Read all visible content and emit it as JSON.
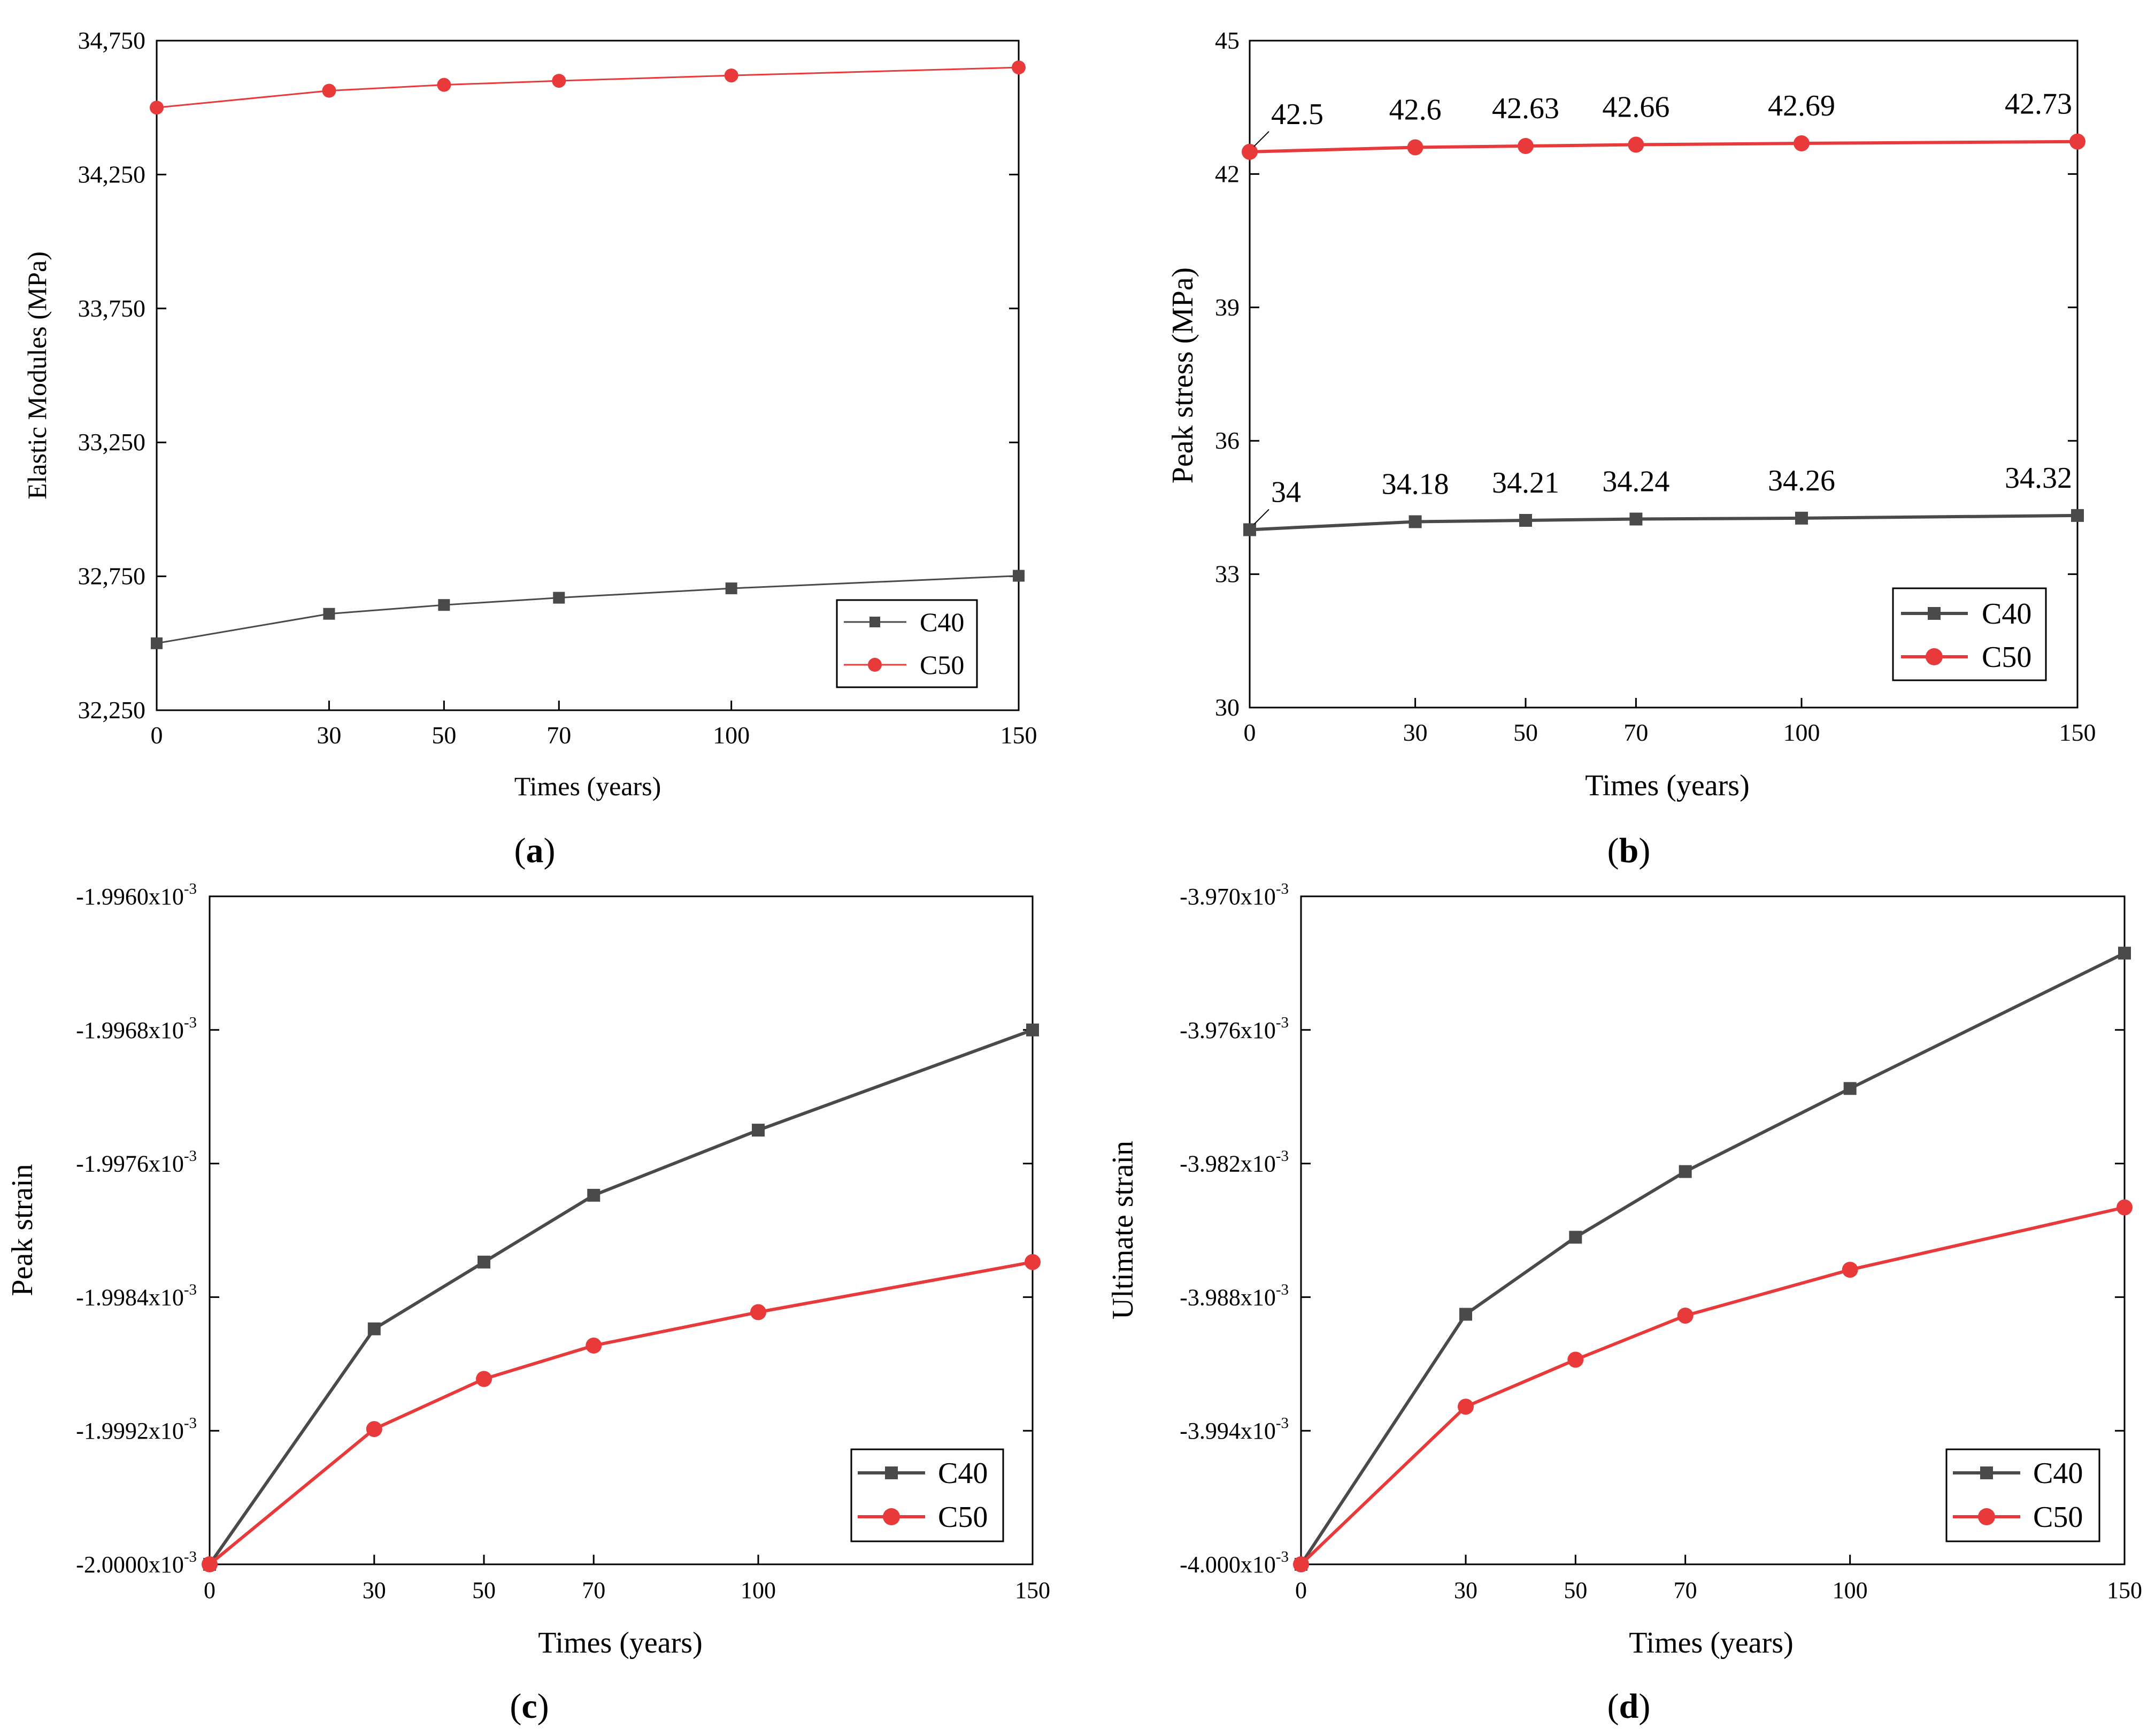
{
  "colors": {
    "c40": "#4a4a4a",
    "c50": "#e8393b",
    "axis": "#000000"
  },
  "chart_data": [
    {
      "id": "a",
      "type": "line",
      "panel_label": "a",
      "xlabel": "Times (years)",
      "ylabel": "Elastic Modules (MPa)",
      "x": [
        0,
        30,
        50,
        70,
        100,
        150
      ],
      "xticks": [
        "0",
        "30",
        "50",
        "70",
        "100",
        "150"
      ],
      "xlim": [
        0,
        150
      ],
      "ylim": [
        32250,
        34750
      ],
      "yticks": [
        32250,
        32750,
        33250,
        33750,
        34250,
        34750
      ],
      "yticklabels": [
        "32,250",
        "32,750",
        "33,250",
        "33,750",
        "34,250",
        "34,750"
      ],
      "series": [
        {
          "name": "C40",
          "marker": "square",
          "values": [
            32500,
            32610,
            32643,
            32670,
            32705,
            32752
          ]
        },
        {
          "name": "C50",
          "marker": "circle",
          "values": [
            34500,
            34563,
            34585,
            34600,
            34620,
            34650
          ]
        }
      ],
      "legend": "bottom-right",
      "data_labels": false
    },
    {
      "id": "b",
      "type": "line",
      "panel_label": "b",
      "xlabel": "Times (years)",
      "ylabel": "Peak stress (MPa)",
      "x": [
        0,
        30,
        50,
        70,
        100,
        150
      ],
      "xticks": [
        "0",
        "30",
        "50",
        "70",
        "100",
        "150"
      ],
      "xlim": [
        0,
        150
      ],
      "ylim": [
        30,
        45
      ],
      "yticks": [
        30,
        33,
        36,
        39,
        42,
        45
      ],
      "yticklabels": [
        "30",
        "33",
        "36",
        "39",
        "42",
        "45"
      ],
      "series": [
        {
          "name": "C40",
          "marker": "square",
          "values": [
            34,
            34.18,
            34.21,
            34.24,
            34.26,
            34.32
          ],
          "labels": [
            "34",
            "34.18",
            "34.21",
            "34.24",
            "34.26",
            "34.32"
          ]
        },
        {
          "name": "C50",
          "marker": "circle",
          "values": [
            42.5,
            42.6,
            42.63,
            42.66,
            42.69,
            42.73
          ],
          "labels": [
            "42.5",
            "42.6",
            "42.63",
            "42.66",
            "42.69",
            "42.73"
          ]
        }
      ],
      "legend": "bottom-right",
      "data_labels": true
    },
    {
      "id": "c",
      "type": "line",
      "panel_label": "c",
      "xlabel": "Times (years)",
      "ylabel": "Peak strain",
      "x": [
        0,
        30,
        50,
        70,
        100,
        150
      ],
      "xticks": [
        "0",
        "30",
        "50",
        "70",
        "100",
        "150"
      ],
      "xlim": [
        0,
        150
      ],
      "ylim": [
        -2.0,
        -1.996
      ],
      "yticks": [
        -2.0,
        -1.9992,
        -1.9984,
        -1.9976,
        -1.9968,
        -1.996
      ],
      "yticklabels": [
        "-2.0000x10",
        "-1.9992x10",
        "-1.9984x10",
        "-1.9976x10",
        "-1.9968x10",
        "-1.9960x10"
      ],
      "ytick_exponent": "-3",
      "y_unit_note": "values in units of 10^-3",
      "series": [
        {
          "name": "C40",
          "marker": "square",
          "values": [
            -2.0,
            -1.99859,
            -1.99819,
            -1.99779,
            -1.9974,
            -1.9968
          ]
        },
        {
          "name": "C50",
          "marker": "circle",
          "values": [
            -2.0,
            -1.99919,
            -1.99889,
            -1.99869,
            -1.99849,
            -1.99819
          ]
        }
      ],
      "legend": "bottom-right",
      "data_labels": false
    },
    {
      "id": "d",
      "type": "line",
      "panel_label": "d",
      "xlabel": "Times (years)",
      "ylabel": "Ultimate strain",
      "x": [
        0,
        30,
        50,
        70,
        100,
        150
      ],
      "xticks": [
        "0",
        "30",
        "50",
        "70",
        "100",
        "150"
      ],
      "xlim": [
        0,
        150
      ],
      "ylim": [
        -4.0,
        -3.97
      ],
      "yticks": [
        -4.0,
        -3.994,
        -3.988,
        -3.982,
        -3.976,
        -3.97
      ],
      "yticklabels": [
        "-4.000x10",
        "-3.994x10",
        "-3.988x10",
        "-3.982x10",
        "-3.976x10",
        "-3.970x10"
      ],
      "ytick_exponent": "-3",
      "y_unit_note": "values in units of 10^-3",
      "series": [
        {
          "name": "C40",
          "marker": "square",
          "values": [
            -4.0,
            -3.98877,
            -3.98531,
            -3.98236,
            -3.97863,
            -3.97255
          ]
        },
        {
          "name": "C50",
          "marker": "circle",
          "values": [
            -4.0,
            -3.99292,
            -3.99081,
            -3.98883,
            -3.98677,
            -3.98397
          ]
        }
      ],
      "legend": "bottom-right",
      "data_labels": false
    }
  ]
}
